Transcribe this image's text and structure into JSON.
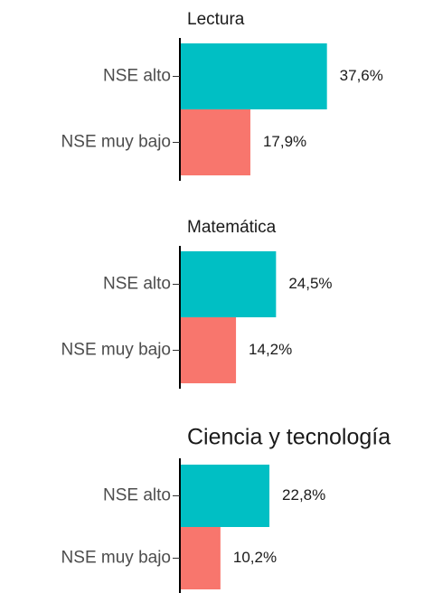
{
  "chart_data": [
    {
      "type": "bar",
      "orientation": "horizontal",
      "title": "Lectura",
      "categories": [
        "NSE alto",
        "NSE muy bajo"
      ],
      "values": [
        37.6,
        17.9
      ],
      "value_labels": [
        "37,6%",
        "17,9%"
      ],
      "colors": [
        "#00bfc4",
        "#f8766d"
      ]
    },
    {
      "type": "bar",
      "orientation": "horizontal",
      "title": "Matemática",
      "categories": [
        "NSE alto",
        "NSE muy bajo"
      ],
      "values": [
        24.5,
        14.2
      ],
      "value_labels": [
        "24,5%",
        "14,2%"
      ],
      "colors": [
        "#00bfc4",
        "#f8766d"
      ]
    },
    {
      "type": "bar",
      "orientation": "horizontal",
      "title": "Ciencia y tecnología",
      "categories": [
        "NSE alto",
        "NSE muy bajo"
      ],
      "values": [
        22.8,
        10.2
      ],
      "value_labels": [
        "22,8%",
        "10,2%"
      ],
      "colors": [
        "#00bfc4",
        "#f8766d"
      ]
    }
  ]
}
